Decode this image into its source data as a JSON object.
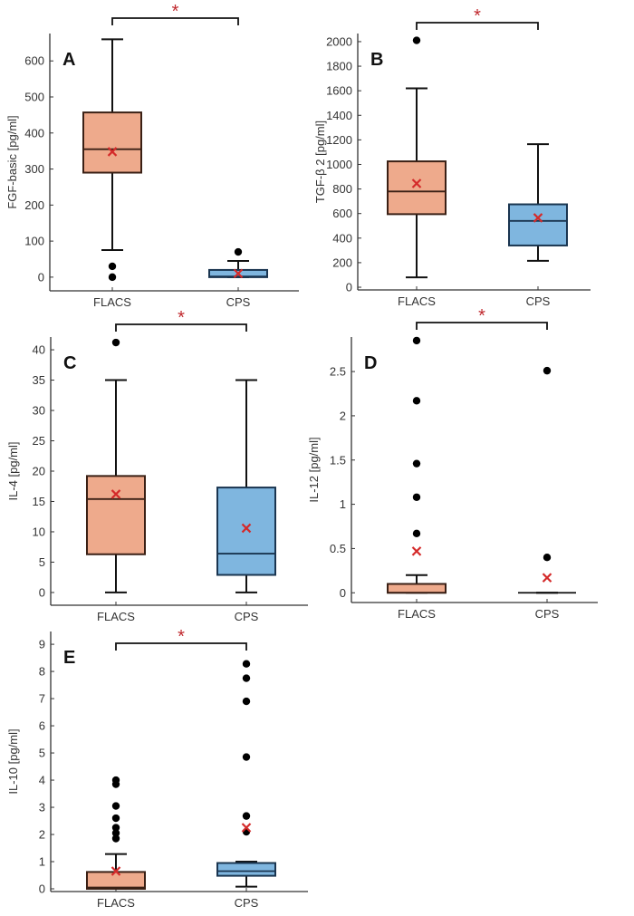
{
  "colors": {
    "FLACS": "#eeaa8c",
    "FLACS_edge": "#3a2015",
    "CPS": "#7fb6df",
    "CPS_edge": "#1a3550",
    "mean": "#d42a2a",
    "significance": "#c0282d"
  },
  "chart_data": [
    {
      "type": "box",
      "panel": "A",
      "ylabel": "FGF-basic [pg/ml]",
      "categories": [
        "FLACS",
        "CPS"
      ],
      "ylim": [
        -38,
        676
      ],
      "yticks": [
        0,
        100,
        200,
        300,
        400,
        500,
        600
      ],
      "significance": "*",
      "grid": false,
      "series": [
        {
          "category": "FLACS",
          "whisker_low": 75,
          "q1": 290,
          "median": 355,
          "q3": 457,
          "whisker_high": 660,
          "mean": 348,
          "outliers": [
            30,
            0
          ]
        },
        {
          "category": "CPS",
          "whisker_low": 0,
          "q1": 0,
          "median": 2,
          "q3": 20,
          "whisker_high": 45,
          "mean": 10,
          "outliers": [
            70
          ]
        }
      ]
    },
    {
      "type": "box",
      "panel": "B",
      "ylabel": "TGF-β 2  [pg/ml]",
      "categories": [
        "FLACS",
        "CPS"
      ],
      "ylim": [
        -22,
        2066
      ],
      "yticks": [
        0,
        200,
        400,
        600,
        800,
        1000,
        1200,
        1400,
        1600,
        1800,
        2000
      ],
      "significance": "*",
      "grid": false,
      "series": [
        {
          "category": "FLACS",
          "whisker_low": 80,
          "q1": 595,
          "median": 780,
          "q3": 1025,
          "whisker_high": 1620,
          "mean": 845,
          "outliers": [
            2010
          ]
        },
        {
          "category": "CPS",
          "whisker_low": 215,
          "q1": 340,
          "median": 540,
          "q3": 675,
          "whisker_high": 1165,
          "mean": 565,
          "outliers": []
        }
      ]
    },
    {
      "type": "box",
      "panel": "C",
      "ylabel": "IL-4 [pg/ml]",
      "categories": [
        "FLACS",
        "CPS"
      ],
      "ylim": [
        -2.1,
        42.1
      ],
      "yticks": [
        0,
        5,
        10,
        15,
        20,
        25,
        30,
        35,
        40
      ],
      "significance": "*",
      "grid": false,
      "series": [
        {
          "category": "FLACS",
          "whisker_low": 0,
          "q1": 6.3,
          "median": 15.4,
          "q3": 19.2,
          "whisker_high": 35,
          "mean": 16.2,
          "outliers": [
            41.2
          ]
        },
        {
          "category": "CPS",
          "whisker_low": 0,
          "q1": 2.9,
          "median": 6.4,
          "q3": 17.3,
          "whisker_high": 35,
          "mean": 10.6,
          "outliers": []
        }
      ]
    },
    {
      "type": "box",
      "panel": "D",
      "ylabel": "IL-12 [pg/ml]",
      "categories": [
        "FLACS",
        "CPS"
      ],
      "ylim": [
        -0.11,
        2.89
      ],
      "yticks": [
        0,
        0.5,
        1,
        1.5,
        2,
        2.5
      ],
      "significance": "*",
      "grid": false,
      "series": [
        {
          "category": "FLACS",
          "whisker_low": 0,
          "q1": 0,
          "median": 0,
          "q3": 0.1,
          "whisker_high": 0.2,
          "mean": 0.47,
          "outliers": [
            0.67,
            1.08,
            1.46,
            2.17,
            2.85
          ]
        },
        {
          "category": "CPS",
          "whisker_low": 0,
          "q1": 0,
          "median": 0,
          "q3": 0,
          "whisker_high": 0,
          "mean": 0.17,
          "outliers": [
            0.4,
            2.51
          ]
        }
      ]
    },
    {
      "type": "box",
      "panel": "E",
      "ylabel": "IL-10 [pg/ml]",
      "categories": [
        "FLACS",
        "CPS"
      ],
      "ylim": [
        -0.1,
        9.47
      ],
      "yticks": [
        0,
        1,
        2,
        3,
        4,
        5,
        6,
        7,
        8,
        9
      ],
      "significance": "*",
      "grid": false,
      "series": [
        {
          "category": "FLACS",
          "whisker_low": 0,
          "q1": 0,
          "median": 0.05,
          "q3": 0.62,
          "whisker_high": 1.28,
          "mean": 0.65,
          "outliers": [
            1.85,
            2.05,
            2.25,
            2.6,
            3.05,
            3.85,
            4.0
          ]
        },
        {
          "category": "CPS",
          "whisker_low": 0.08,
          "q1": 0.48,
          "median": 0.65,
          "q3": 0.95,
          "whisker_high": 1.0,
          "mean": 2.25,
          "outliers": [
            2.1,
            2.68,
            4.85,
            6.9,
            7.75,
            8.28
          ]
        }
      ]
    }
  ]
}
